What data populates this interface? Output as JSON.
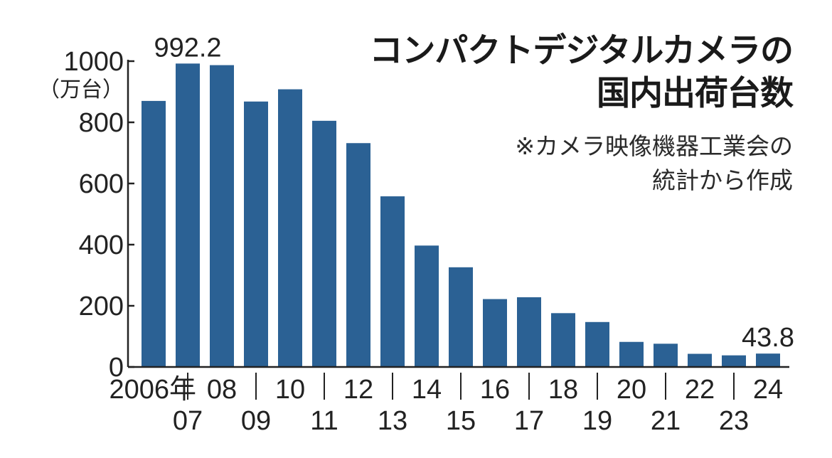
{
  "chart_data": {
    "type": "bar",
    "title_lines": [
      "コンパクトデジタルカメラの",
      "国内出荷台数"
    ],
    "note_lines": [
      "※カメラ映像機器工業会の",
      "統計から作成"
    ],
    "ylabel": "（万台）",
    "ylim": [
      0,
      1000
    ],
    "yticks": [
      "0",
      "200",
      "400",
      "600",
      "800",
      "1000"
    ],
    "categories": [
      "2006年",
      "07",
      "08",
      "09",
      "10",
      "11",
      "12",
      "13",
      "14",
      "15",
      "16",
      "17",
      "18",
      "19",
      "20",
      "21",
      "22",
      "23",
      "24"
    ],
    "values": [
      870,
      992.2,
      987,
      868,
      908,
      805,
      732,
      558,
      397,
      326,
      222,
      228,
      176,
      147,
      82,
      76,
      43,
      38,
      43.8
    ],
    "data_labels": [
      {
        "index": 1,
        "text": "992.2"
      },
      {
        "index": 18,
        "text": "43.8"
      }
    ],
    "bar_color": "#2b6194",
    "grid": false
  }
}
